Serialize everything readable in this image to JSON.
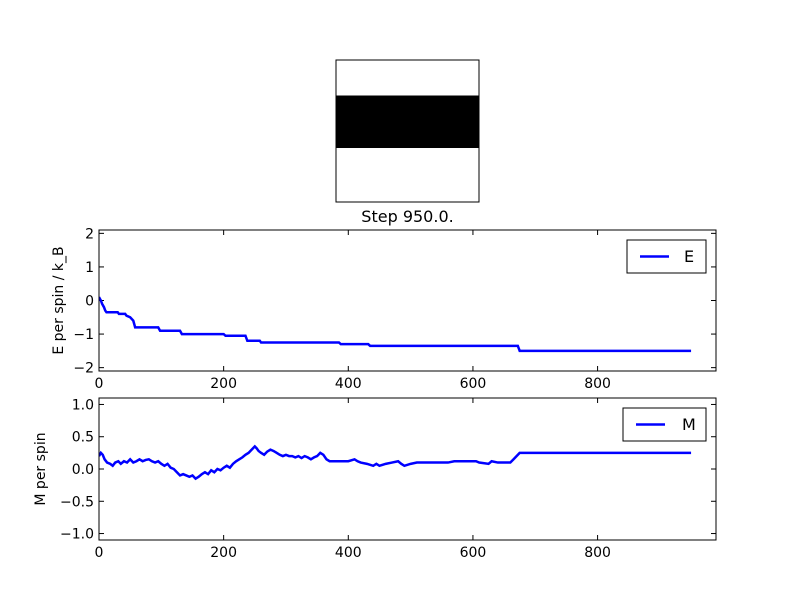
{
  "title": "Step 950.0.",
  "chart_data": [
    {
      "type": "heatmap",
      "title": "Step 950.0.",
      "colormap": [
        "#ffffff",
        "#000000"
      ],
      "rows": [
        [
          0
        ],
        [
          1
        ],
        [
          0
        ]
      ],
      "row_fractions": [
        0.25,
        0.37,
        0.38
      ]
    },
    {
      "type": "line",
      "xlabel": "",
      "ylabel": "E per spin / k_B",
      "xlim": [
        0,
        990
      ],
      "ylim": [
        -2.1,
        2.1
      ],
      "xticks": [
        "0",
        "200",
        "400",
        "600",
        "800"
      ],
      "yticks": [
        "−2",
        "−1",
        "0",
        "1",
        "2"
      ],
      "xtick_values": [
        0,
        200,
        400,
        600,
        800
      ],
      "ytick_values": [
        -2,
        -1,
        0,
        1,
        2
      ],
      "legend_position": "top-right",
      "series": [
        {
          "name": "E",
          "color": "#0000ff",
          "points": [
            [
              0,
              0.1
            ],
            [
              3,
              0.0
            ],
            [
              5,
              -0.1
            ],
            [
              8,
              -0.2
            ],
            [
              10,
              -0.3
            ],
            [
              12,
              -0.35
            ],
            [
              30,
              -0.35
            ],
            [
              32,
              -0.4
            ],
            [
              42,
              -0.4
            ],
            [
              44,
              -0.45
            ],
            [
              50,
              -0.5
            ],
            [
              55,
              -0.6
            ],
            [
              58,
              -0.8
            ],
            [
              95,
              -0.8
            ],
            [
              98,
              -0.9
            ],
            [
              130,
              -0.9
            ],
            [
              133,
              -1.0
            ],
            [
              200,
              -1.0
            ],
            [
              203,
              -1.05
            ],
            [
              235,
              -1.05
            ],
            [
              238,
              -1.2
            ],
            [
              258,
              -1.2
            ],
            [
              260,
              -1.25
            ],
            [
              385,
              -1.25
            ],
            [
              388,
              -1.3
            ],
            [
              432,
              -1.3
            ],
            [
              435,
              -1.35
            ],
            [
              672,
              -1.35
            ],
            [
              675,
              -1.5
            ],
            [
              950,
              -1.5
            ]
          ]
        }
      ]
    },
    {
      "type": "line",
      "xlabel": "",
      "ylabel": "M per spin",
      "xlim": [
        0,
        990
      ],
      "ylim": [
        -1.1,
        1.1
      ],
      "xticks": [
        "0",
        "200",
        "400",
        "600",
        "800"
      ],
      "yticks": [
        "−1.0",
        "−0.5",
        "0.0",
        "0.5",
        "1.0"
      ],
      "xtick_values": [
        0,
        200,
        400,
        600,
        800
      ],
      "ytick_values": [
        -1.0,
        -0.5,
        0.0,
        0.5,
        1.0
      ],
      "legend_position": "top-right",
      "series": [
        {
          "name": "M",
          "color": "#0000ff",
          "points": [
            [
              0,
              0.2
            ],
            [
              3,
              0.25
            ],
            [
              6,
              0.22
            ],
            [
              9,
              0.15
            ],
            [
              13,
              0.1
            ],
            [
              18,
              0.08
            ],
            [
              22,
              0.05
            ],
            [
              26,
              0.1
            ],
            [
              31,
              0.12
            ],
            [
              35,
              0.08
            ],
            [
              40,
              0.12
            ],
            [
              45,
              0.1
            ],
            [
              50,
              0.15
            ],
            [
              55,
              0.1
            ],
            [
              60,
              0.12
            ],
            [
              65,
              0.15
            ],
            [
              70,
              0.12
            ],
            [
              75,
              0.14
            ],
            [
              80,
              0.15
            ],
            [
              85,
              0.12
            ],
            [
              90,
              0.1
            ],
            [
              95,
              0.12
            ],
            [
              100,
              0.08
            ],
            [
              105,
              0.05
            ],
            [
              110,
              0.08
            ],
            [
              115,
              0.02
            ],
            [
              120,
              0.0
            ],
            [
              125,
              -0.05
            ],
            [
              130,
              -0.1
            ],
            [
              135,
              -0.08
            ],
            [
              140,
              -0.1
            ],
            [
              145,
              -0.12
            ],
            [
              150,
              -0.1
            ],
            [
              155,
              -0.15
            ],
            [
              160,
              -0.12
            ],
            [
              165,
              -0.08
            ],
            [
              170,
              -0.05
            ],
            [
              175,
              -0.08
            ],
            [
              180,
              -0.02
            ],
            [
              185,
              -0.05
            ],
            [
              190,
              0.0
            ],
            [
              195,
              -0.02
            ],
            [
              200,
              0.02
            ],
            [
              205,
              0.05
            ],
            [
              210,
              0.02
            ],
            [
              215,
              0.08
            ],
            [
              220,
              0.12
            ],
            [
              225,
              0.15
            ],
            [
              230,
              0.18
            ],
            [
              235,
              0.22
            ],
            [
              240,
              0.25
            ],
            [
              245,
              0.3
            ],
            [
              250,
              0.35
            ],
            [
              253,
              0.32
            ],
            [
              256,
              0.28
            ],
            [
              260,
              0.25
            ],
            [
              265,
              0.22
            ],
            [
              270,
              0.27
            ],
            [
              275,
              0.3
            ],
            [
              280,
              0.28
            ],
            [
              285,
              0.25
            ],
            [
              290,
              0.22
            ],
            [
              295,
              0.2
            ],
            [
              300,
              0.22
            ],
            [
              305,
              0.2
            ],
            [
              310,
              0.2
            ],
            [
              315,
              0.18
            ],
            [
              320,
              0.2
            ],
            [
              325,
              0.17
            ],
            [
              330,
              0.2
            ],
            [
              335,
              0.18
            ],
            [
              340,
              0.15
            ],
            [
              345,
              0.18
            ],
            [
              350,
              0.2
            ],
            [
              355,
              0.25
            ],
            [
              360,
              0.22
            ],
            [
              365,
              0.15
            ],
            [
              370,
              0.12
            ],
            [
              400,
              0.12
            ],
            [
              410,
              0.15
            ],
            [
              415,
              0.12
            ],
            [
              420,
              0.1
            ],
            [
              430,
              0.08
            ],
            [
              440,
              0.05
            ],
            [
              445,
              0.08
            ],
            [
              450,
              0.05
            ],
            [
              460,
              0.08
            ],
            [
              470,
              0.1
            ],
            [
              480,
              0.12
            ],
            [
              485,
              0.08
            ],
            [
              490,
              0.05
            ],
            [
              500,
              0.08
            ],
            [
              510,
              0.1
            ],
            [
              560,
              0.1
            ],
            [
              570,
              0.12
            ],
            [
              605,
              0.12
            ],
            [
              610,
              0.1
            ],
            [
              625,
              0.08
            ],
            [
              630,
              0.12
            ],
            [
              640,
              0.1
            ],
            [
              660,
              0.1
            ],
            [
              665,
              0.15
            ],
            [
              670,
              0.2
            ],
            [
              675,
              0.25
            ],
            [
              950,
              0.25
            ]
          ]
        }
      ]
    }
  ]
}
